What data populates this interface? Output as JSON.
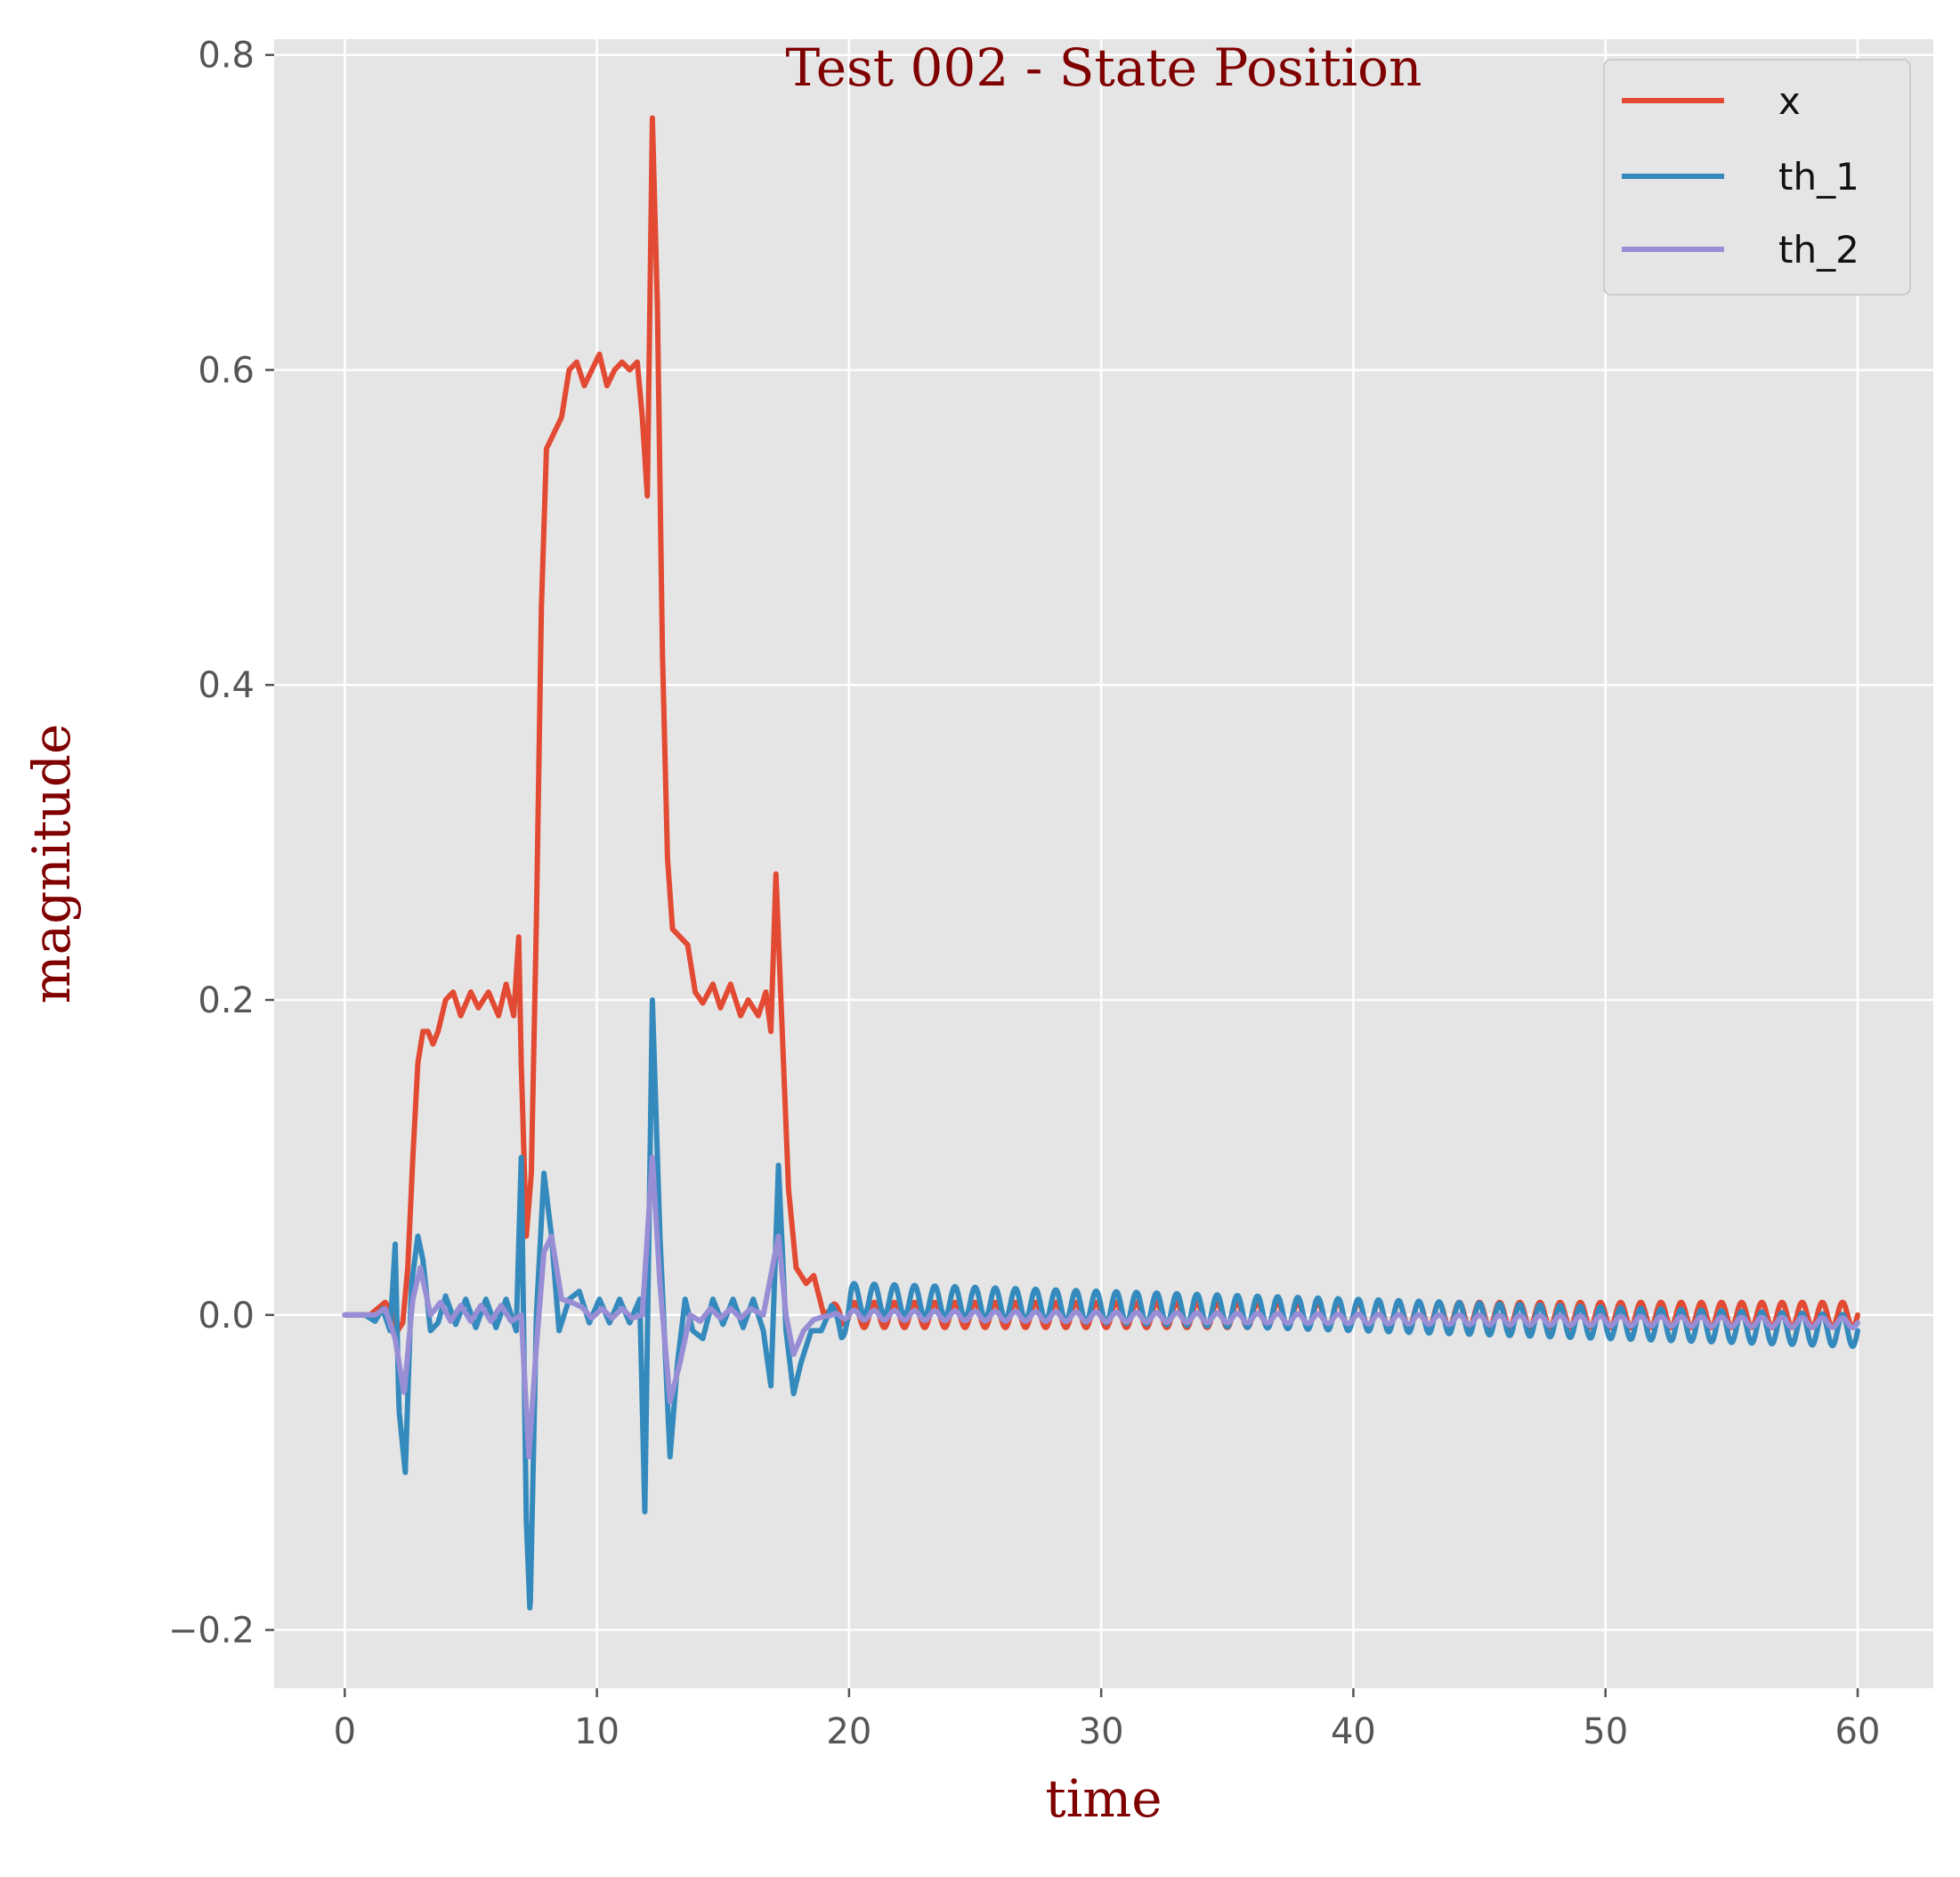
{
  "chart_data": {
    "type": "line",
    "title": "Test 002 - State Position",
    "xlabel": "time",
    "ylabel": "magnitude",
    "xlim": [
      -2.8,
      63.0
    ],
    "ylim": [
      -0.237,
      0.81
    ],
    "x_ticks": [
      0,
      10,
      20,
      30,
      40,
      50,
      60
    ],
    "x_tick_labels": [
      "0",
      "10",
      "20",
      "30",
      "40",
      "50",
      "60"
    ],
    "y_ticks": [
      -0.2,
      0.0,
      0.2,
      0.4,
      0.6,
      0.8
    ],
    "y_tick_labels": [
      "−0.2",
      "0.0",
      "0.2",
      "0.4",
      "0.6",
      "0.8"
    ],
    "grid": true,
    "legend_position": "top-right",
    "colors": {
      "background": "#e5e5e5",
      "grid": "#ffffff",
      "x": "#e24a33",
      "th_1": "#348abd",
      "th_2": "#988ed5"
    },
    "series": [
      {
        "name": "x",
        "points": [
          [
            0,
            0.0
          ],
          [
            1.0,
            0.0
          ],
          [
            1.3,
            0.004
          ],
          [
            1.6,
            0.008
          ],
          [
            1.9,
            0.003
          ],
          [
            2.1,
            -0.01
          ],
          [
            2.3,
            -0.005
          ],
          [
            2.5,
            0.03
          ],
          [
            2.7,
            0.1
          ],
          [
            2.9,
            0.16
          ],
          [
            3.1,
            0.18
          ],
          [
            3.3,
            0.18
          ],
          [
            3.5,
            0.172
          ],
          [
            3.7,
            0.18
          ],
          [
            4.0,
            0.2
          ],
          [
            4.3,
            0.205
          ],
          [
            4.6,
            0.19
          ],
          [
            5.0,
            0.205
          ],
          [
            5.3,
            0.195
          ],
          [
            5.7,
            0.205
          ],
          [
            6.1,
            0.19
          ],
          [
            6.4,
            0.21
          ],
          [
            6.7,
            0.19
          ],
          [
            6.9,
            0.24
          ],
          [
            7.0,
            0.16
          ],
          [
            7.2,
            0.05
          ],
          [
            7.4,
            0.09
          ],
          [
            7.6,
            0.25
          ],
          [
            7.8,
            0.45
          ],
          [
            8.0,
            0.55
          ],
          [
            8.3,
            0.56
          ],
          [
            8.6,
            0.57
          ],
          [
            8.9,
            0.6
          ],
          [
            9.2,
            0.605
          ],
          [
            9.5,
            0.59
          ],
          [
            9.8,
            0.6
          ],
          [
            10.1,
            0.61
          ],
          [
            10.4,
            0.59
          ],
          [
            10.7,
            0.6
          ],
          [
            11.0,
            0.605
          ],
          [
            11.3,
            0.6
          ],
          [
            11.6,
            0.605
          ],
          [
            11.8,
            0.57
          ],
          [
            12.0,
            0.52
          ],
          [
            12.2,
            0.76
          ],
          [
            12.4,
            0.64
          ],
          [
            12.6,
            0.42
          ],
          [
            12.8,
            0.29
          ],
          [
            13.0,
            0.245
          ],
          [
            13.3,
            0.24
          ],
          [
            13.6,
            0.235
          ],
          [
            13.9,
            0.205
          ],
          [
            14.2,
            0.198
          ],
          [
            14.6,
            0.21
          ],
          [
            14.9,
            0.195
          ],
          [
            15.3,
            0.21
          ],
          [
            15.7,
            0.19
          ],
          [
            16.0,
            0.2
          ],
          [
            16.4,
            0.19
          ],
          [
            16.7,
            0.205
          ],
          [
            16.9,
            0.18
          ],
          [
            17.1,
            0.28
          ],
          [
            17.3,
            0.2
          ],
          [
            17.6,
            0.08
          ],
          [
            17.9,
            0.03
          ],
          [
            18.3,
            0.02
          ],
          [
            18.6,
            0.025
          ],
          [
            19.0,
            0.0
          ],
          [
            19.4,
            0.005
          ],
          [
            19.8,
            0.0
          ],
          [
            20.5,
            0.0
          ],
          [
            60,
            0.0
          ]
        ]
      },
      {
        "name": "th_1",
        "points": [
          [
            0,
            0.0
          ],
          [
            0.8,
            0.0
          ],
          [
            1.2,
            -0.004
          ],
          [
            1.5,
            0.004
          ],
          [
            1.8,
            -0.01
          ],
          [
            2.0,
            0.045
          ],
          [
            2.15,
            -0.06
          ],
          [
            2.4,
            -0.1
          ],
          [
            2.65,
            0.02
          ],
          [
            2.9,
            0.05
          ],
          [
            3.1,
            0.035
          ],
          [
            3.4,
            -0.01
          ],
          [
            3.7,
            -0.005
          ],
          [
            4.0,
            0.012
          ],
          [
            4.4,
            -0.006
          ],
          [
            4.8,
            0.01
          ],
          [
            5.2,
            -0.008
          ],
          [
            5.6,
            0.01
          ],
          [
            6.0,
            -0.008
          ],
          [
            6.4,
            0.01
          ],
          [
            6.8,
            -0.01
          ],
          [
            7.0,
            0.1
          ],
          [
            7.2,
            -0.13
          ],
          [
            7.35,
            -0.19
          ],
          [
            7.6,
            0.0
          ],
          [
            7.9,
            0.09
          ],
          [
            8.2,
            0.05
          ],
          [
            8.5,
            -0.01
          ],
          [
            8.9,
            0.01
          ],
          [
            9.3,
            0.015
          ],
          [
            9.7,
            -0.005
          ],
          [
            10.1,
            0.01
          ],
          [
            10.5,
            -0.005
          ],
          [
            10.9,
            0.01
          ],
          [
            11.3,
            -0.005
          ],
          [
            11.7,
            0.01
          ],
          [
            11.9,
            -0.125
          ],
          [
            12.2,
            0.2
          ],
          [
            12.5,
            0.05
          ],
          [
            12.9,
            -0.09
          ],
          [
            13.2,
            -0.03
          ],
          [
            13.5,
            0.01
          ],
          [
            13.8,
            -0.01
          ],
          [
            14.2,
            -0.015
          ],
          [
            14.6,
            0.01
          ],
          [
            15.0,
            -0.006
          ],
          [
            15.4,
            0.01
          ],
          [
            15.8,
            -0.008
          ],
          [
            16.2,
            0.01
          ],
          [
            16.6,
            -0.01
          ],
          [
            16.9,
            -0.045
          ],
          [
            17.2,
            0.095
          ],
          [
            17.5,
            -0.01
          ],
          [
            17.8,
            -0.05
          ],
          [
            18.1,
            -0.03
          ],
          [
            18.5,
            -0.01
          ],
          [
            18.9,
            -0.01
          ],
          [
            19.3,
            0.005
          ],
          [
            19.7,
            -0.01
          ],
          [
            20.1,
            0.01
          ],
          [
            60,
            -0.01
          ]
        ]
      },
      {
        "name": "th_2",
        "points": [
          [
            0,
            0.0
          ],
          [
            0.8,
            0.0
          ],
          [
            1.2,
            0.0
          ],
          [
            1.6,
            0.004
          ],
          [
            2.0,
            -0.015
          ],
          [
            2.35,
            -0.05
          ],
          [
            2.7,
            0.01
          ],
          [
            3.0,
            0.03
          ],
          [
            3.4,
            0.0
          ],
          [
            3.8,
            0.008
          ],
          [
            4.2,
            -0.004
          ],
          [
            4.6,
            0.006
          ],
          [
            5.0,
            -0.004
          ],
          [
            5.4,
            0.006
          ],
          [
            5.8,
            -0.004
          ],
          [
            6.2,
            0.006
          ],
          [
            6.6,
            -0.004
          ],
          [
            7.0,
            0.0
          ],
          [
            7.3,
            -0.09
          ],
          [
            7.6,
            -0.02
          ],
          [
            7.9,
            0.04
          ],
          [
            8.2,
            0.05
          ],
          [
            8.6,
            0.01
          ],
          [
            9.0,
            0.008
          ],
          [
            9.4,
            0.005
          ],
          [
            9.8,
            -0.002
          ],
          [
            10.2,
            0.004
          ],
          [
            10.6,
            -0.002
          ],
          [
            11.0,
            0.004
          ],
          [
            11.4,
            -0.002
          ],
          [
            11.8,
            0.0
          ],
          [
            12.2,
            0.1
          ],
          [
            12.5,
            0.02
          ],
          [
            12.9,
            -0.055
          ],
          [
            13.3,
            -0.03
          ],
          [
            13.7,
            0.0
          ],
          [
            14.1,
            -0.004
          ],
          [
            14.5,
            0.004
          ],
          [
            14.9,
            -0.002
          ],
          [
            15.3,
            0.004
          ],
          [
            15.7,
            -0.002
          ],
          [
            16.1,
            0.004
          ],
          [
            16.6,
            0.0
          ],
          [
            17.2,
            0.05
          ],
          [
            17.5,
            0.0
          ],
          [
            17.8,
            -0.025
          ],
          [
            18.2,
            -0.01
          ],
          [
            18.6,
            -0.003
          ],
          [
            19.0,
            -0.001
          ],
          [
            19.5,
            0.0
          ],
          [
            60,
            -0.005
          ]
        ]
      }
    ],
    "steady_oscillation": {
      "start": 19.2,
      "end": 60.0,
      "period": 0.8,
      "amplitudes": {
        "x": 0.008,
        "th_1": 0.01,
        "th_2": 0.003
      }
    }
  }
}
